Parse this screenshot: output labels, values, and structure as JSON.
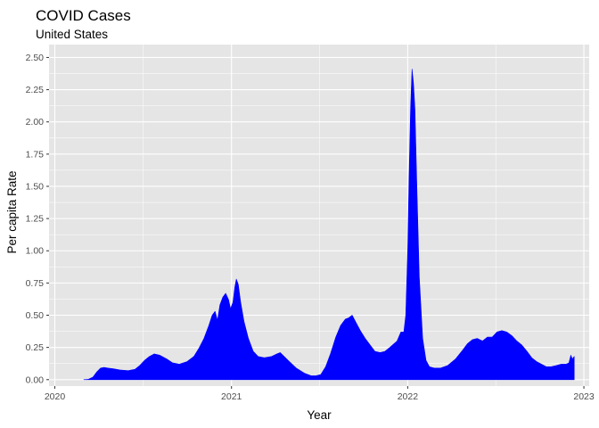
{
  "chart_data": {
    "type": "area",
    "title": "COVID Cases",
    "subtitle": "United States",
    "xlabel": "Year",
    "ylabel": "Per capita Rate",
    "fill_color": "#0000ff",
    "panel_background": "#e5e5e5",
    "grid_color": "#ffffff",
    "grid": true,
    "legend": "none",
    "x_ticks": [
      "2020",
      "2021",
      "2022",
      "2023"
    ],
    "y_ticks": [
      "0.00",
      "0.25",
      "0.50",
      "0.75",
      "1.00",
      "1.25",
      "1.50",
      "1.75",
      "2.00",
      "2.25",
      "2.50"
    ],
    "xlim": [
      "2019-12-20",
      "2023-01-12"
    ],
    "ylim": [
      -0.05,
      2.6
    ],
    "series": [
      {
        "x": [
          "2020-03-01",
          "2020-03-10",
          "2020-03-20",
          "2020-03-28",
          "2020-04-05",
          "2020-04-12",
          "2020-04-20",
          "2020-05-01",
          "2020-05-15",
          "2020-06-01",
          "2020-06-15",
          "2020-06-25",
          "2020-07-05",
          "2020-07-15",
          "2020-07-25",
          "2020-08-05",
          "2020-08-20",
          "2020-09-01",
          "2020-09-15",
          "2020-10-01",
          "2020-10-15",
          "2020-10-25",
          "2020-11-05",
          "2020-11-15",
          "2020-11-22",
          "2020-11-28",
          "2020-12-03",
          "2020-12-08",
          "2020-12-14",
          "2020-12-20",
          "2020-12-26",
          "2020-12-30",
          "2021-01-04",
          "2021-01-08",
          "2021-01-11",
          "2021-01-15",
          "2021-01-20",
          "2021-01-27",
          "2021-02-05",
          "2021-02-15",
          "2021-02-25",
          "2021-03-10",
          "2021-03-25",
          "2021-04-05",
          "2021-04-12",
          "2021-04-20",
          "2021-05-01",
          "2021-05-15",
          "2021-06-01",
          "2021-06-15",
          "2021-06-25",
          "2021-07-05",
          "2021-07-15",
          "2021-07-25",
          "2021-08-05",
          "2021-08-15",
          "2021-08-25",
          "2021-09-01",
          "2021-09-08",
          "2021-09-15",
          "2021-09-25",
          "2021-10-05",
          "2021-10-15",
          "2021-10-25",
          "2021-11-05",
          "2021-11-15",
          "2021-11-25",
          "2021-12-01",
          "2021-12-10",
          "2021-12-18",
          "2021-12-24",
          "2021-12-28",
          "2022-01-01",
          "2022-01-04",
          "2022-01-07",
          "2022-01-10",
          "2022-01-13",
          "2022-01-16",
          "2022-01-20",
          "2022-01-25",
          "2022-02-01",
          "2022-02-08",
          "2022-02-15",
          "2022-02-25",
          "2022-03-10",
          "2022-03-25",
          "2022-04-10",
          "2022-04-25",
          "2022-05-05",
          "2022-05-15",
          "2022-05-25",
          "2022-06-05",
          "2022-06-15",
          "2022-06-25",
          "2022-07-05",
          "2022-07-15",
          "2022-07-25",
          "2022-08-05",
          "2022-08-15",
          "2022-08-25",
          "2022-09-05",
          "2022-09-15",
          "2022-09-25",
          "2022-10-05",
          "2022-10-15",
          "2022-10-25",
          "2022-11-05",
          "2022-11-15",
          "2022-11-25",
          "2022-12-01",
          "2022-12-05",
          "2022-12-08",
          "2022-12-12"
        ],
        "values": [
          0.0,
          0.002,
          0.02,
          0.06,
          0.09,
          0.095,
          0.09,
          0.085,
          0.075,
          0.07,
          0.08,
          0.11,
          0.15,
          0.18,
          0.2,
          0.19,
          0.16,
          0.13,
          0.12,
          0.14,
          0.18,
          0.24,
          0.32,
          0.42,
          0.5,
          0.53,
          0.46,
          0.58,
          0.64,
          0.67,
          0.62,
          0.55,
          0.6,
          0.72,
          0.78,
          0.74,
          0.6,
          0.45,
          0.32,
          0.22,
          0.18,
          0.17,
          0.18,
          0.2,
          0.21,
          0.18,
          0.14,
          0.09,
          0.05,
          0.03,
          0.03,
          0.04,
          0.1,
          0.2,
          0.33,
          0.42,
          0.47,
          0.48,
          0.5,
          0.45,
          0.38,
          0.32,
          0.27,
          0.22,
          0.21,
          0.22,
          0.25,
          0.27,
          0.3,
          0.37,
          0.37,
          0.5,
          1.0,
          1.6,
          2.1,
          2.41,
          2.3,
          2.1,
          1.5,
          0.8,
          0.32,
          0.15,
          0.1,
          0.09,
          0.09,
          0.11,
          0.16,
          0.23,
          0.28,
          0.31,
          0.32,
          0.3,
          0.33,
          0.33,
          0.37,
          0.38,
          0.37,
          0.34,
          0.3,
          0.27,
          0.22,
          0.17,
          0.14,
          0.12,
          0.1,
          0.1,
          0.11,
          0.12,
          0.12,
          0.13,
          0.19,
          0.16,
          0.18
        ]
      }
    ]
  }
}
